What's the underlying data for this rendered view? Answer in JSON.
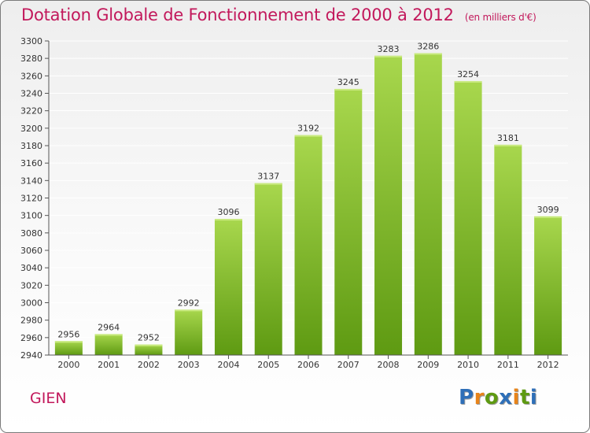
{
  "header": {
    "title": "Dotation Globale de Fonctionnement de 2000 à 2012",
    "subtitle": "(en milliers d'€)"
  },
  "footer": {
    "commune": "GIEN",
    "logo_text": "Proxiti"
  },
  "colors": {
    "title": "#c2185b",
    "bar_top": "#a8d74d",
    "bar_bottom": "#5e9a12",
    "grid": "#ffffff",
    "logo_letters": [
      "#2e6fb8",
      "#e8841a",
      "#5e9a12",
      "#2e6fb8",
      "#e8841a",
      "#5e9a12",
      "#2e6fb8"
    ]
  },
  "chart_data": {
    "type": "bar",
    "title": "Dotation Globale de Fonctionnement de 2000 à 2012",
    "subtitle": "(en milliers d'€)",
    "categories": [
      "2000",
      "2001",
      "2002",
      "2003",
      "2004",
      "2005",
      "2006",
      "2007",
      "2008",
      "2009",
      "2010",
      "2011",
      "2012"
    ],
    "values": [
      2956,
      2964,
      2952,
      2992,
      3096,
      3137,
      3192,
      3245,
      3283,
      3286,
      3254,
      3181,
      3099
    ],
    "ylim": [
      2940,
      3300
    ],
    "yticks": [
      2940,
      2960,
      2980,
      3000,
      3020,
      3040,
      3060,
      3080,
      3100,
      3120,
      3140,
      3160,
      3180,
      3200,
      3220,
      3240,
      3260,
      3280,
      3300
    ],
    "grid": true,
    "data_labels": true,
    "legend": "none"
  }
}
